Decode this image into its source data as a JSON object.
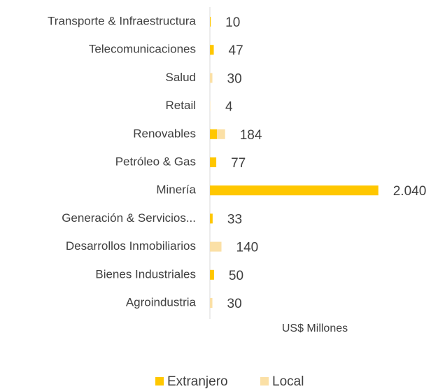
{
  "chart_data": {
    "type": "stacked_barh",
    "categories": [
      "Transporte & Infraestructura",
      "Telecomunicaciones",
      "Salud",
      "Retail",
      "Renovables",
      "Petróleo & Gas",
      "Minería",
      "Generación & Servicios...",
      "Desarrollos Inmobiliarios",
      "Bienes Industriales",
      "Agroindustria"
    ],
    "series": [
      {
        "name": "Extranjero",
        "color": "#FFC700",
        "values": [
          10,
          47,
          0,
          0,
          85,
          77,
          2040,
          33,
          0,
          50,
          0
        ]
      },
      {
        "name": "Local",
        "color": "#FBE0A6",
        "values": [
          0,
          0,
          30,
          4,
          99,
          0,
          0,
          0,
          140,
          0,
          30
        ]
      }
    ],
    "totals": [
      10,
      47,
      30,
      4,
      184,
      77,
      2040,
      33,
      140,
      50,
      30
    ],
    "value_labels": [
      "10",
      "47",
      "30",
      "4",
      "184",
      "77",
      "2.040",
      "33",
      "140",
      "50",
      "30"
    ],
    "xlabel": "US$ Millones",
    "xlim": [
      0,
      2500
    ],
    "legend": "bottom"
  }
}
